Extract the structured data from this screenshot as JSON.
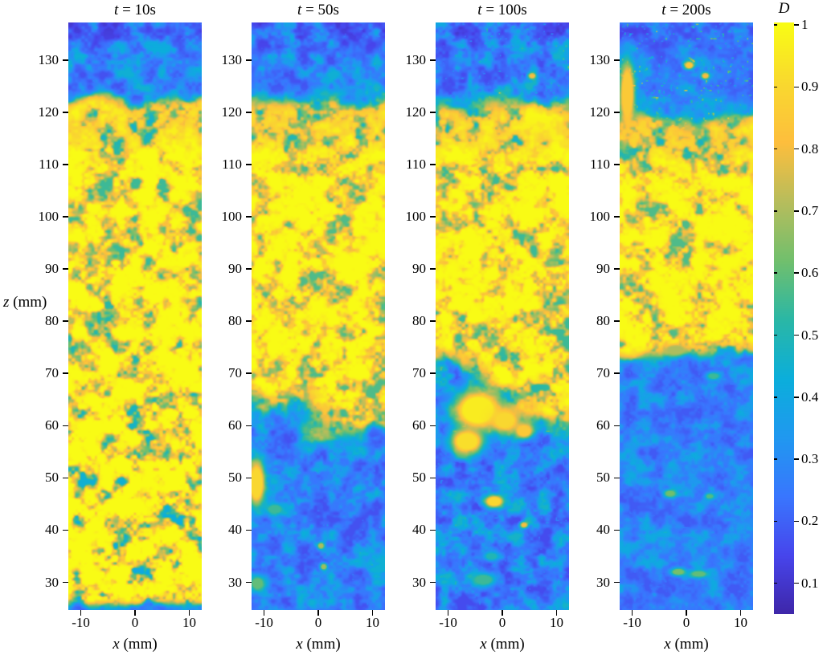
{
  "figure": {
    "background": "#ffffff",
    "axis_color": "#000000",
    "text_color": "#000000"
  },
  "chart_data": {
    "type": "heatmap",
    "description": "Four time-lapse maps of degree D over x and z with a shared parula colorbar",
    "x_axis": {
      "label_var": "x",
      "label_rest": " (mm)",
      "ticks": [
        -10,
        0,
        10
      ],
      "lim": [
        -12.3,
        12.3
      ]
    },
    "z_axis": {
      "label_var": "z",
      "label_rest": " (mm)",
      "ticks": [
        30,
        40,
        50,
        60,
        70,
        80,
        90,
        100,
        110,
        120,
        130
      ],
      "lim": [
        24.7,
        137.2
      ]
    },
    "colorbar": {
      "label": "D",
      "ticks": [
        "1",
        "0.9",
        "0.8",
        "0.7",
        "0.6",
        "0.5",
        "0.4",
        "0.3",
        "0.2",
        "0.1"
      ],
      "tick_values": [
        1,
        0.9,
        0.8,
        0.7,
        0.6,
        0.5,
        0.4,
        0.3,
        0.2,
        0.1
      ],
      "clim": [
        0.05,
        1.0
      ]
    },
    "colormap": {
      "name": "parula",
      "stops": [
        [
          0,
          "#3e26a8"
        ],
        [
          0.1,
          "#4745ec"
        ],
        [
          0.2,
          "#3976fe"
        ],
        [
          0.3,
          "#2098f0"
        ],
        [
          0.4,
          "#0baedb"
        ],
        [
          0.5,
          "#2ab7a6"
        ],
        [
          0.6,
          "#71bf6d"
        ],
        [
          0.7,
          "#b7bd5c"
        ],
        [
          0.8,
          "#fdbe3d"
        ],
        [
          0.9,
          "#f9d82f"
        ],
        [
          1,
          "#f9fb15"
        ]
      ]
    },
    "panels": [
      {
        "id": "t10s",
        "title_var": "t",
        "title_rest": " = 10s",
        "seed": 11,
        "d_low": 0.26,
        "d_high": 0.965,
        "top": {
          "z": 122.3,
          "ragged": 1.6,
          "w": 1.5,
          "band_drop": 0.09
        },
        "bottom": {
          "z": 25.9,
          "slope": 0,
          "ragged": 0.6,
          "w": 0.8
        },
        "speckle": {
          "yellow": 0.36,
          "blue": 0.16,
          "depth_gain": 0.14
        },
        "sparks": {
          "threshold": 0.95,
          "top": 0.12,
          "bottom": 0.05
        },
        "blobs": []
      },
      {
        "id": "t50s",
        "title_var": "t",
        "title_rest": " = 50s",
        "seed": 22,
        "d_low": 0.26,
        "d_high": 0.965,
        "top": {
          "z": 122.3,
          "ragged": 1.6,
          "w": 1.5,
          "band_drop": 0.09
        },
        "bottom": {
          "z": 61.0,
          "slope": -0.35,
          "ragged": 5.2,
          "w": 2.3
        },
        "speckle": {
          "yellow": 0.34,
          "blue": 0.16,
          "depth_gain": 0
        },
        "sparks": {
          "threshold": 0.93,
          "top": 0.12,
          "bottom": 0.15
        },
        "blobs": [
          [
            -11.4,
            49,
            1.1,
            3.0,
            0.9
          ],
          [
            -8,
            44,
            1.2,
            0.8,
            0.55
          ],
          [
            0.5,
            37,
            0.45,
            0.45,
            0.7
          ],
          [
            1,
            33,
            0.45,
            0.45,
            0.68
          ],
          [
            -11.2,
            29.8,
            1.0,
            1.0,
            0.6
          ]
        ]
      },
      {
        "id": "t100s",
        "title_var": "t",
        "title_rest": " = 100s",
        "seed": 33,
        "d_low": 0.26,
        "d_high": 0.965,
        "top": {
          "z": 121.3,
          "ragged": 1.9,
          "w": 1.7,
          "band_drop": 0.09
        },
        "bottom": {
          "z": 66.5,
          "slope": -0.45,
          "ragged": 6.0,
          "w": 2.8
        },
        "speckle": {
          "yellow": 0.36,
          "blue": 0.18,
          "depth_gain": 0
        },
        "sparks": {
          "threshold": 0.9,
          "top": 0.3,
          "bottom": 0.15
        },
        "blobs": [
          [
            -4.5,
            63,
            3.0,
            2.6,
            0.96
          ],
          [
            -6.5,
            57,
            2.0,
            1.6,
            0.92
          ],
          [
            0.5,
            61,
            1.8,
            1.5,
            0.9
          ],
          [
            4,
            59,
            1.2,
            1.0,
            0.85
          ],
          [
            -1.5,
            45.5,
            1.2,
            0.8,
            0.9
          ],
          [
            4,
            41,
            0.5,
            0.4,
            0.8
          ],
          [
            -3.5,
            30.5,
            1.6,
            0.9,
            0.55
          ],
          [
            -2,
            35,
            1.0,
            0.6,
            0.5
          ],
          [
            5.5,
            127,
            0.5,
            0.4,
            0.8
          ]
        ]
      },
      {
        "id": "t200s",
        "title_var": "t",
        "title_rest": " = 200s",
        "seed": 44,
        "d_low": 0.26,
        "d_high": 0.965,
        "top": {
          "z": 119.6,
          "ragged": 2.3,
          "w": 1.9,
          "band_drop": 0.1
        },
        "bottom": {
          "z": 73.2,
          "slope": 0.05,
          "ragged": 1.4,
          "w": 1.2
        },
        "speckle": {
          "yellow": 0.34,
          "blue": 0.13,
          "depth_gain": 0
        },
        "sparks": {
          "threshold": 0.84,
          "top": 0.5,
          "bottom": 0.06
        },
        "blobs": [
          [
            -10.9,
            123.5,
            1.0,
            4.5,
            0.85
          ],
          [
            0.5,
            129,
            0.6,
            0.5,
            0.85
          ],
          [
            3.5,
            127,
            0.5,
            0.4,
            0.8
          ],
          [
            -2,
            74.5,
            1.5,
            0.8,
            0.7
          ],
          [
            5,
            69.5,
            0.9,
            0.5,
            0.55
          ],
          [
            -3,
            47,
            0.8,
            0.5,
            0.62
          ],
          [
            4.3,
            46.5,
            0.6,
            0.4,
            0.58
          ],
          [
            -1.5,
            32,
            1.0,
            0.5,
            0.63
          ],
          [
            2.3,
            31.6,
            1.2,
            0.5,
            0.6
          ]
        ]
      }
    ]
  }
}
